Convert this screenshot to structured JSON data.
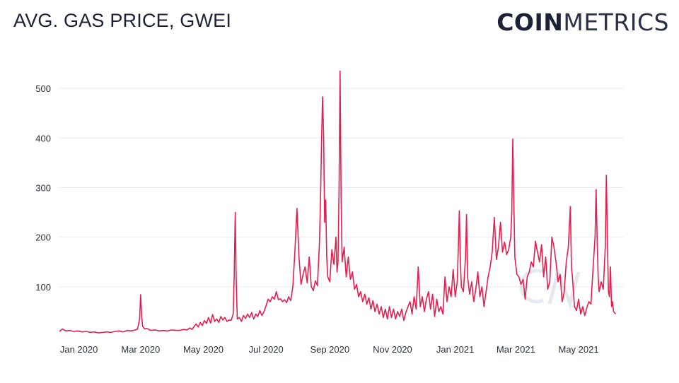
{
  "header": {
    "title": "AVG. GAS PRICE, GWEI",
    "brand_bold": "COIN",
    "brand_light": "METRICS"
  },
  "chart_data": {
    "type": "line",
    "title": "AVG. GAS PRICE, GWEI",
    "xlabel": "",
    "ylabel": "",
    "ylim": [
      0,
      550
    ],
    "xlim_days": [
      -19,
      530
    ],
    "grid": true,
    "yticks": [
      100,
      200,
      300,
      400,
      500
    ],
    "xticks": [
      {
        "label": "Jan 2020",
        "day": 0
      },
      {
        "label": "Mar 2020",
        "day": 60
      },
      {
        "label": "May 2020",
        "day": 121
      },
      {
        "label": "Jul 2020",
        "day": 182
      },
      {
        "label": "Sep 2020",
        "day": 244
      },
      {
        "label": "Nov 2020",
        "day": 305
      },
      {
        "label": "Jan 2021",
        "day": 366
      },
      {
        "label": "Mar 2021",
        "day": 425
      },
      {
        "label": "May 2021",
        "day": 486
      }
    ],
    "line_color": "#e0204f",
    "series": [
      {
        "name": "Avg gas price (gwei)",
        "x_unit": "days since 2020-01-01",
        "points": [
          [
            -19,
            10
          ],
          [
            -16,
            15
          ],
          [
            -13,
            11
          ],
          [
            -9,
            12
          ],
          [
            -5,
            10
          ],
          [
            -1,
            11
          ],
          [
            3,
            9
          ],
          [
            7,
            10
          ],
          [
            11,
            8
          ],
          [
            15,
            9
          ],
          [
            19,
            7
          ],
          [
            23,
            8
          ],
          [
            27,
            9
          ],
          [
            31,
            8
          ],
          [
            35,
            10
          ],
          [
            39,
            11
          ],
          [
            43,
            9
          ],
          [
            47,
            12
          ],
          [
            51,
            11
          ],
          [
            55,
            13
          ],
          [
            57,
            15
          ],
          [
            59,
            35
          ],
          [
            60,
            84
          ],
          [
            61,
            40
          ],
          [
            62,
            20
          ],
          [
            64,
            15
          ],
          [
            66,
            16
          ],
          [
            70,
            12
          ],
          [
            74,
            13
          ],
          [
            78,
            11
          ],
          [
            82,
            12
          ],
          [
            86,
            11
          ],
          [
            90,
            13
          ],
          [
            94,
            12
          ],
          [
            98,
            12
          ],
          [
            102,
            14
          ],
          [
            105,
            13
          ],
          [
            108,
            17
          ],
          [
            110,
            14
          ],
          [
            112,
            20
          ],
          [
            114,
            25
          ],
          [
            116,
            19
          ],
          [
            118,
            28
          ],
          [
            120,
            22
          ],
          [
            122,
            32
          ],
          [
            124,
            26
          ],
          [
            126,
            38
          ],
          [
            128,
            27
          ],
          [
            130,
            44
          ],
          [
            132,
            30
          ],
          [
            134,
            35
          ],
          [
            136,
            28
          ],
          [
            138,
            40
          ],
          [
            140,
            33
          ],
          [
            142,
            38
          ],
          [
            144,
            30
          ],
          [
            146,
            33
          ],
          [
            148,
            32
          ],
          [
            150,
            45
          ],
          [
            151,
            120
          ],
          [
            152,
            250
          ],
          [
            153,
            110
          ],
          [
            154,
            35
          ],
          [
            156,
            38
          ],
          [
            158,
            30
          ],
          [
            160,
            42
          ],
          [
            162,
            36
          ],
          [
            164,
            45
          ],
          [
            166,
            38
          ],
          [
            168,
            48
          ],
          [
            170,
            35
          ],
          [
            172,
            45
          ],
          [
            174,
            40
          ],
          [
            176,
            52
          ],
          [
            178,
            42
          ],
          [
            180,
            50
          ],
          [
            182,
            62
          ],
          [
            184,
            75
          ],
          [
            186,
            70
          ],
          [
            188,
            80
          ],
          [
            190,
            75
          ],
          [
            192,
            90
          ],
          [
            194,
            74
          ],
          [
            196,
            76
          ],
          [
            198,
            70
          ],
          [
            200,
            74
          ],
          [
            202,
            68
          ],
          [
            204,
            80
          ],
          [
            206,
            72
          ],
          [
            208,
            100
          ],
          [
            210,
            170
          ],
          [
            212,
            258
          ],
          [
            214,
            160
          ],
          [
            216,
            105
          ],
          [
            218,
            125
          ],
          [
            220,
            140
          ],
          [
            222,
            108
          ],
          [
            224,
            160
          ],
          [
            226,
            100
          ],
          [
            228,
            92
          ],
          [
            230,
            112
          ],
          [
            232,
            102
          ],
          [
            234,
            190
          ],
          [
            235,
            280
          ],
          [
            236,
            400
          ],
          [
            237,
            483
          ],
          [
            238,
            400
          ],
          [
            239,
            230
          ],
          [
            240,
            275
          ],
          [
            241,
            160
          ],
          [
            242,
            120
          ],
          [
            244,
            110
          ],
          [
            246,
            175
          ],
          [
            248,
            145
          ],
          [
            250,
            200
          ],
          [
            251,
            130
          ],
          [
            252,
            150
          ],
          [
            253,
            300
          ],
          [
            254,
            535
          ],
          [
            255,
            280
          ],
          [
            256,
            150
          ],
          [
            258,
            180
          ],
          [
            260,
            120
          ],
          [
            262,
            160
          ],
          [
            264,
            115
          ],
          [
            266,
            130
          ],
          [
            268,
            95
          ],
          [
            270,
            105
          ],
          [
            272,
            80
          ],
          [
            274,
            90
          ],
          [
            276,
            70
          ],
          [
            278,
            85
          ],
          [
            280,
            65
          ],
          [
            282,
            78
          ],
          [
            284,
            55
          ],
          [
            286,
            72
          ],
          [
            288,
            50
          ],
          [
            290,
            65
          ],
          [
            292,
            45
          ],
          [
            294,
            60
          ],
          [
            296,
            38
          ],
          [
            298,
            55
          ],
          [
            300,
            35
          ],
          [
            302,
            60
          ],
          [
            304,
            38
          ],
          [
            306,
            55
          ],
          [
            308,
            35
          ],
          [
            310,
            50
          ],
          [
            312,
            40
          ],
          [
            314,
            55
          ],
          [
            316,
            32
          ],
          [
            318,
            48
          ],
          [
            320,
            60
          ],
          [
            322,
            70
          ],
          [
            324,
            45
          ],
          [
            326,
            80
          ],
          [
            328,
            55
          ],
          [
            330,
            140
          ],
          [
            332,
            60
          ],
          [
            334,
            80
          ],
          [
            336,
            50
          ],
          [
            338,
            75
          ],
          [
            340,
            90
          ],
          [
            342,
            55
          ],
          [
            344,
            85
          ],
          [
            346,
            40
          ],
          [
            348,
            75
          ],
          [
            350,
            50
          ],
          [
            352,
            60
          ],
          [
            354,
            45
          ],
          [
            356,
            120
          ],
          [
            358,
            70
          ],
          [
            360,
            100
          ],
          [
            362,
            80
          ],
          [
            364,
            135
          ],
          [
            366,
            80
          ],
          [
            368,
            110
          ],
          [
            369,
            180
          ],
          [
            370,
            253
          ],
          [
            371,
            150
          ],
          [
            372,
            100
          ],
          [
            374,
            90
          ],
          [
            376,
            160
          ],
          [
            377,
            246
          ],
          [
            378,
            120
          ],
          [
            380,
            85
          ],
          [
            382,
            110
          ],
          [
            384,
            70
          ],
          [
            386,
            95
          ],
          [
            388,
            130
          ],
          [
            390,
            80
          ],
          [
            392,
            100
          ],
          [
            394,
            60
          ],
          [
            396,
            90
          ],
          [
            398,
            120
          ],
          [
            400,
            140
          ],
          [
            402,
            170
          ],
          [
            404,
            240
          ],
          [
            406,
            155
          ],
          [
            408,
            180
          ],
          [
            410,
            230
          ],
          [
            412,
            170
          ],
          [
            414,
            190
          ],
          [
            416,
            165
          ],
          [
            418,
            175
          ],
          [
            420,
            200
          ],
          [
            421,
            250
          ],
          [
            422,
            398
          ],
          [
            423,
            270
          ],
          [
            424,
            160
          ],
          [
            426,
            125
          ],
          [
            428,
            120
          ],
          [
            430,
            105
          ],
          [
            432,
            115
          ],
          [
            434,
            75
          ],
          [
            436,
            120
          ],
          [
            438,
            130
          ],
          [
            440,
            150
          ],
          [
            442,
            140
          ],
          [
            444,
            192
          ],
          [
            446,
            170
          ],
          [
            448,
            150
          ],
          [
            450,
            185
          ],
          [
            452,
            120
          ],
          [
            454,
            160
          ],
          [
            456,
            95
          ],
          [
            458,
            110
          ],
          [
            460,
            200
          ],
          [
            462,
            180
          ],
          [
            464,
            150
          ],
          [
            466,
            110
          ],
          [
            468,
            125
          ],
          [
            470,
            70
          ],
          [
            472,
            90
          ],
          [
            474,
            150
          ],
          [
            476,
            180
          ],
          [
            478,
            262
          ],
          [
            479,
            140
          ],
          [
            480,
            120
          ],
          [
            482,
            60
          ],
          [
            484,
            52
          ],
          [
            486,
            75
          ],
          [
            488,
            45
          ],
          [
            490,
            60
          ],
          [
            492,
            42
          ],
          [
            494,
            58
          ],
          [
            496,
            70
          ],
          [
            498,
            65
          ],
          [
            500,
            135
          ],
          [
            502,
            200
          ],
          [
            503,
            296
          ],
          [
            504,
            200
          ],
          [
            505,
            120
          ],
          [
            506,
            90
          ],
          [
            508,
            110
          ],
          [
            510,
            95
          ],
          [
            512,
            180
          ],
          [
            513,
            325
          ],
          [
            514,
            200
          ],
          [
            515,
            90
          ],
          [
            516,
            80
          ],
          [
            517,
            140
          ],
          [
            518,
            60
          ],
          [
            519,
            70
          ],
          [
            520,
            50
          ],
          [
            522,
            45
          ]
        ]
      }
    ]
  }
}
